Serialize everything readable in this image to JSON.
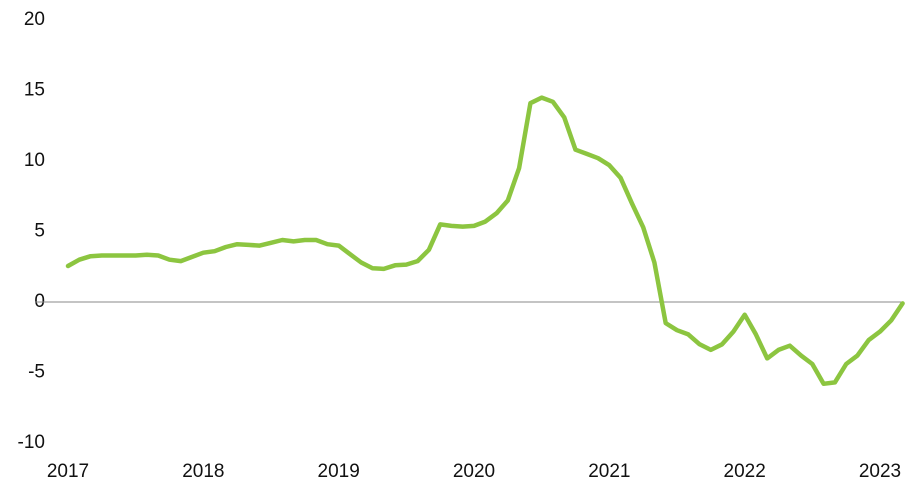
{
  "chart_data": {
    "type": "line",
    "categories": [
      "2017",
      null,
      null,
      null,
      null,
      null,
      null,
      null,
      null,
      null,
      null,
      null,
      "2018",
      null,
      null,
      null,
      null,
      null,
      null,
      null,
      null,
      null,
      null,
      null,
      "2019",
      null,
      null,
      null,
      null,
      null,
      null,
      null,
      null,
      null,
      null,
      null,
      "2020",
      null,
      null,
      null,
      null,
      null,
      null,
      null,
      null,
      null,
      null,
      null,
      "2021",
      null,
      null,
      null,
      null,
      null,
      null,
      null,
      null,
      null,
      null,
      null,
      "2022",
      null,
      null,
      null,
      null,
      null,
      null,
      null,
      null,
      null,
      null,
      null,
      "2023",
      null,
      null
    ],
    "series": [
      {
        "color": "#8cc540",
        "values": [
          2.55,
          3.0,
          3.25,
          3.3,
          3.3,
          3.3,
          3.3,
          3.35,
          3.3,
          3.0,
          2.9,
          3.2,
          3.5,
          3.6,
          3.9,
          4.1,
          4.05,
          4.0,
          4.2,
          4.4,
          4.3,
          4.4,
          4.4,
          4.1,
          4.0,
          3.4,
          2.8,
          2.4,
          2.35,
          2.6,
          2.65,
          2.9,
          3.7,
          5.5,
          5.4,
          5.35,
          5.4,
          5.7,
          6.3,
          7.2,
          9.5,
          14.1,
          14.5,
          14.2,
          13.1,
          10.8,
          10.5,
          10.2,
          9.7,
          8.8,
          7.0,
          5.3,
          2.8,
          -1.5,
          -2.0,
          -2.3,
          -3.0,
          -3.4,
          -3.0,
          -2.1,
          -0.9,
          -2.3,
          -4.0,
          -3.4,
          -3.1,
          -3.8,
          -4.4,
          -5.8,
          -5.7,
          -4.4,
          -3.8,
          -2.7,
          -2.1,
          -1.3,
          -0.1
        ]
      }
    ],
    "ylim": [
      -10,
      20
    ],
    "yticks": [
      -10,
      -5,
      0,
      5,
      10,
      15,
      20
    ]
  }
}
